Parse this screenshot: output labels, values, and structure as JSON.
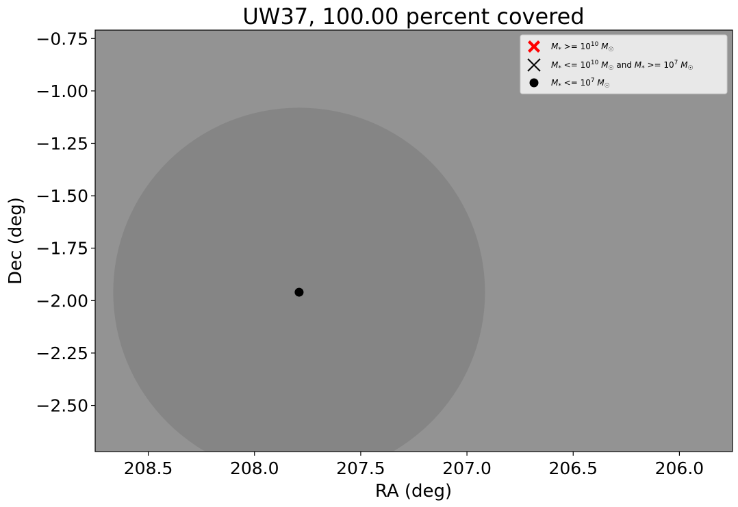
{
  "chart_data": {
    "type": "scatter",
    "title": "UW37, 100.00 percent covered",
    "xlabel": "RA (deg)",
    "ylabel": "Dec (deg)",
    "xlim": [
      208.75,
      205.75
    ],
    "ylim": [
      -2.72,
      -0.71
    ],
    "x_inverted": true,
    "xticks": [
      208.5,
      208.0,
      207.5,
      207.0,
      206.5,
      206.0
    ],
    "xtick_labels": [
      "208.5",
      "208.0",
      "207.5",
      "207.0",
      "206.5",
      "206.0"
    ],
    "yticks": [
      -0.75,
      -1.0,
      -1.25,
      -1.5,
      -1.75,
      -2.0,
      -2.25,
      -2.5
    ],
    "ytick_labels": [
      "−0.75",
      "−1.00",
      "−1.25",
      "−1.50",
      "−1.75",
      "−2.00",
      "−2.25",
      "−2.50"
    ],
    "grid": false,
    "legend_position": "top-right",
    "background_color": "#939393",
    "coverage_circle": {
      "center": [
        207.79,
        -1.96
      ],
      "radius_ra": 0.875,
      "radius_dec": 0.88,
      "color": "#858585"
    },
    "legend": [
      {
        "marker": "x-filled",
        "color": "#ff0000",
        "text": "M* >= 10^10 M☉"
      },
      {
        "marker": "x",
        "color": "#000000",
        "text": "M* <= 10^10 M☉ and M* >= 10^7 M☉"
      },
      {
        "marker": "dot",
        "color": "#000000",
        "text": "M* <= 10^7 M☉"
      }
    ],
    "series": [
      {
        "marker": "dot",
        "color": "#000000",
        "points": [
          [
            207.79,
            -1.96
          ]
        ]
      }
    ]
  }
}
